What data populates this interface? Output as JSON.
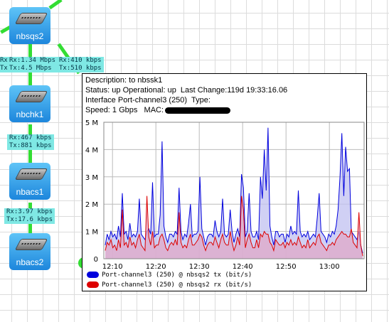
{
  "nodes": [
    {
      "id": "nbsqs2",
      "label": "nbsqs2"
    },
    {
      "id": "nbchk1",
      "label": "nbchk1"
    },
    {
      "id": "nbacs1",
      "label": "nbacs1"
    },
    {
      "id": "nbacs2",
      "label": "nbacs2"
    }
  ],
  "link_labels": {
    "left_partial": {
      "rx": "Rx",
      "tx": "Tx"
    },
    "sqs2_left": "Rx:1.34 Mbps\nTx:4.5 Mbps",
    "sqs2_right": "Rx:410 kbps\nTx:510 kbps",
    "chk1_acs1": "Rx:467 kbps\nTx:881 kbps",
    "acs1_acs2": "Rx:3.97 kbps\nTx:17.6 kbps"
  },
  "tooltip": {
    "description": "Description: to nbssk1",
    "status": "Status: up Operational: up  Last Change:119d 19:33:16.06",
    "interface": "Interface Port-channel3 (250)  Type:",
    "speed": "Speed: 1 Gbps   MAC:"
  },
  "colors": {
    "tx": "#0000dd",
    "rx": "#dd0000",
    "tx_fill": "#c0c0f0",
    "rx_fill": "#e0a8c8",
    "link": "#33dd33",
    "node": "#1d86dc",
    "label_bg": "#7fe8e4"
  },
  "chart_data": {
    "type": "area",
    "x_tick_labels": [
      "12:10",
      "12:20",
      "12:30",
      "12:40",
      "12:50",
      "13:00"
    ],
    "x_range": [
      "12:08",
      "13:08"
    ],
    "y_tick_labels": [
      "0",
      "1 M",
      "2 M",
      "3 M",
      "4 M",
      "5 M"
    ],
    "ylim": [
      0,
      5000000
    ],
    "grid": true,
    "legend_position": "bottom",
    "series": [
      {
        "name": "Port-channel3 (250) @ nbsqs2 tx (bit/s)",
        "color": "#0000dd",
        "values": [
          0.5,
          0.9,
          0.7,
          1.0,
          0.8,
          0.9,
          0.7,
          1.2,
          0.8,
          2.4,
          0.9,
          1.0,
          0.7,
          1.3,
          0.8,
          0.9,
          0.8,
          1.0,
          2.2,
          0.9,
          0.8,
          0.7,
          1.0,
          1.1,
          0.9,
          2.8,
          0.8,
          0.9,
          0.9,
          1.6,
          4.3,
          1.2,
          0.8,
          0.6,
          0.9,
          0.9,
          0.8,
          1.0,
          0.9,
          2.6,
          1.0,
          0.7,
          0.9,
          0.8,
          1.3,
          2.0,
          0.8,
          0.9,
          0.9,
          1.0,
          3.0,
          1.1,
          0.8,
          0.5,
          0.8,
          0.9,
          0.9,
          0.8,
          1.4,
          1.0,
          0.8,
          1.0,
          2.2,
          0.9,
          0.8,
          0.9,
          1.8,
          1.0,
          0.6,
          0.9,
          1.1,
          0.8,
          3.1,
          2.6,
          0.8,
          1.0,
          2.4,
          1.0,
          0.8,
          0.8,
          1.0,
          0.7,
          3.0,
          2.2,
          4.0,
          2.5,
          4.8,
          1.2,
          0.8,
          0.5,
          1.0,
          1.0,
          0.8,
          0.9,
          0.9,
          0.6,
          0.9,
          0.8,
          1.2,
          0.9,
          1.0,
          0.9,
          2.5,
          1.0,
          0.8,
          0.9,
          0.8,
          1.0,
          0.7,
          0.8,
          0.9,
          0.8,
          1.5,
          2.4,
          1.0,
          0.9,
          0.8,
          0.6,
          0.9,
          0.8,
          1.0,
          0.9,
          1.2,
          1.8,
          3.0,
          4.6,
          2.3,
          4.1,
          3.2,
          3.3,
          1.0,
          0.9,
          0.8,
          0.7,
          1.0,
          0.5,
          0.2
        ]
      },
      {
        "name": "Port-channel3 (250) @ nbsqs2 rx (bit/s)",
        "color": "#dd0000",
        "values": [
          0.3,
          0.6,
          0.5,
          0.7,
          0.4,
          0.5,
          0.3,
          0.7,
          0.4,
          1.8,
          0.5,
          0.6,
          0.4,
          0.8,
          0.5,
          0.6,
          0.4,
          0.7,
          0.9,
          0.5,
          0.4,
          0.3,
          2.3,
          0.8,
          0.5,
          1.0,
          0.4,
          0.5,
          0.5,
          0.8,
          0.9,
          0.7,
          0.4,
          0.3,
          0.5,
          0.6,
          0.5,
          0.7,
          0.5,
          1.7,
          0.6,
          0.4,
          0.5,
          0.4,
          0.7,
          0.9,
          0.5,
          0.5,
          0.6,
          0.7,
          0.9,
          0.8,
          0.5,
          0.3,
          0.5,
          0.6,
          0.6,
          0.5,
          0.8,
          0.6,
          0.4,
          0.7,
          0.9,
          0.6,
          0.5,
          0.5,
          1.0,
          0.6,
          0.3,
          0.5,
          0.8,
          0.5,
          2.3,
          1.8,
          0.4,
          0.7,
          0.9,
          0.6,
          0.4,
          0.4,
          0.7,
          0.4,
          0.9,
          0.8,
          1.0,
          0.9,
          0.9,
          0.6,
          0.5,
          0.3,
          0.7,
          0.6,
          0.5,
          0.5,
          0.6,
          0.4,
          0.6,
          0.5,
          0.7,
          0.5,
          0.6,
          0.5,
          0.8,
          0.6,
          0.4,
          0.5,
          0.4,
          0.7,
          0.4,
          0.5,
          0.6,
          0.5,
          0.8,
          0.9,
          0.6,
          0.5,
          0.4,
          0.3,
          0.5,
          0.5,
          0.6,
          0.5,
          0.7,
          0.8,
          0.9,
          1.0,
          0.9,
          0.9,
          0.8,
          0.8,
          1.1,
          0.6,
          0.5,
          0.4,
          1.7,
          0.5,
          0.1
        ]
      }
    ]
  }
}
